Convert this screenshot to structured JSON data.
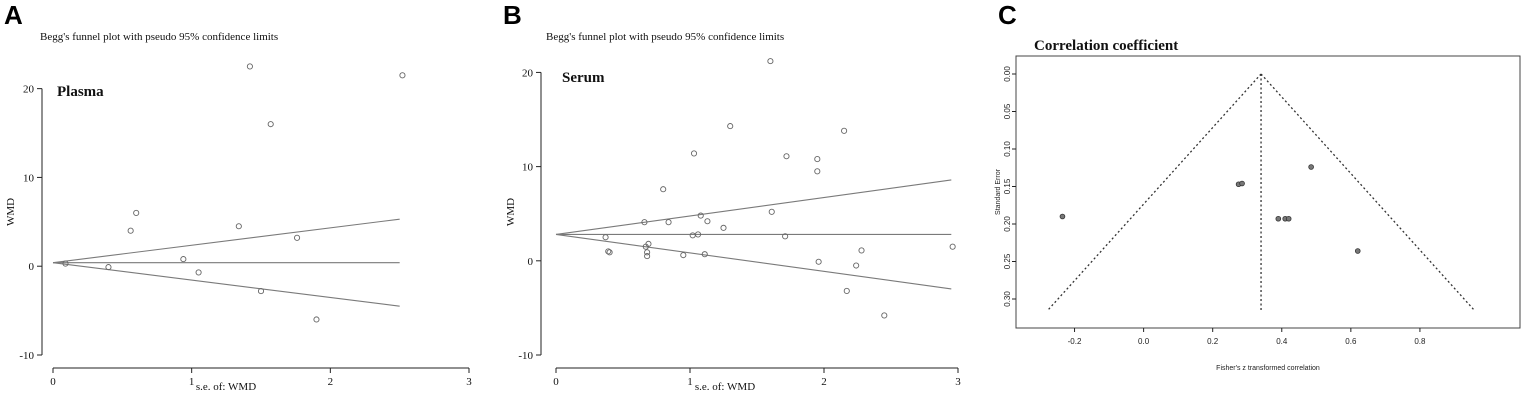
{
  "chart_data": [
    {
      "panel": "A",
      "type": "scatter",
      "title": "Begg's funnel plot with pseudo 95% confidence limits",
      "annotation": "Plasma",
      "xlabel": "s.e. of: WMD",
      "ylabel": "WMD",
      "xlim": [
        0,
        3
      ],
      "ylim": [
        -10,
        23
      ],
      "xticks": [
        0,
        1,
        2,
        3
      ],
      "yticks": [
        -10,
        0,
        10,
        20
      ],
      "pooled": 0.4,
      "limit_xmax": 2.5,
      "points": [
        {
          "x": 0.09,
          "y": 0.3
        },
        {
          "x": 0.4,
          "y": -0.1
        },
        {
          "x": 0.56,
          "y": 4.0
        },
        {
          "x": 0.6,
          "y": 6.0
        },
        {
          "x": 0.94,
          "y": 0.8
        },
        {
          "x": 1.05,
          "y": -0.7
        },
        {
          "x": 1.34,
          "y": 4.5
        },
        {
          "x": 1.42,
          "y": 22.5
        },
        {
          "x": 1.5,
          "y": -2.8
        },
        {
          "x": 1.57,
          "y": 16.0
        },
        {
          "x": 1.76,
          "y": 3.2
        },
        {
          "x": 1.9,
          "y": -6.0
        },
        {
          "x": 2.52,
          "y": 21.5
        }
      ]
    },
    {
      "panel": "B",
      "type": "scatter",
      "title": "Begg's funnel plot with pseudo 95% confidence limits",
      "annotation": "Serum",
      "xlabel": "s.e. of: WMD",
      "ylabel": "WMD",
      "xlim": [
        0,
        3
      ],
      "ylim": [
        -10,
        21
      ],
      "xticks": [
        0,
        1,
        2,
        3
      ],
      "yticks": [
        -10,
        0,
        10,
        20
      ],
      "pooled": 2.8,
      "limit_xmax": 2.95,
      "points": [
        {
          "x": 0.37,
          "y": 2.5
        },
        {
          "x": 0.39,
          "y": 1.0
        },
        {
          "x": 0.4,
          "y": 0.9
        },
        {
          "x": 0.66,
          "y": 4.1
        },
        {
          "x": 0.67,
          "y": 1.5
        },
        {
          "x": 0.68,
          "y": 0.9
        },
        {
          "x": 0.69,
          "y": 1.8
        },
        {
          "x": 0.68,
          "y": 0.5
        },
        {
          "x": 0.8,
          "y": 7.6
        },
        {
          "x": 0.84,
          "y": 4.1
        },
        {
          "x": 0.95,
          "y": 0.6
        },
        {
          "x": 1.02,
          "y": 2.7
        },
        {
          "x": 1.03,
          "y": 11.4
        },
        {
          "x": 1.06,
          "y": 2.8
        },
        {
          "x": 1.08,
          "y": 4.8
        },
        {
          "x": 1.11,
          "y": 0.7
        },
        {
          "x": 1.13,
          "y": 4.2
        },
        {
          "x": 1.25,
          "y": 3.5
        },
        {
          "x": 1.3,
          "y": 14.3
        },
        {
          "x": 1.6,
          "y": 21.2
        },
        {
          "x": 1.61,
          "y": 5.2
        },
        {
          "x": 1.71,
          "y": 2.6
        },
        {
          "x": 1.72,
          "y": 11.1
        },
        {
          "x": 1.95,
          "y": 10.8
        },
        {
          "x": 1.95,
          "y": 9.5
        },
        {
          "x": 1.96,
          "y": -0.1
        },
        {
          "x": 2.15,
          "y": 13.8
        },
        {
          "x": 2.17,
          "y": -3.2
        },
        {
          "x": 2.24,
          "y": -0.5
        },
        {
          "x": 2.28,
          "y": 1.1
        },
        {
          "x": 2.45,
          "y": -5.8
        },
        {
          "x": 2.96,
          "y": 1.5
        }
      ]
    },
    {
      "panel": "C",
      "type": "scatter",
      "title": "Correlation coefficient",
      "xlabel": "Fisher's z transformed correlation",
      "ylabel": "Standard Error",
      "xlim": [
        -0.3,
        1.0
      ],
      "ylim": [
        0.0,
        0.32
      ],
      "y_reversed": true,
      "xticks": [
        -0.2,
        0.0,
        0.2,
        0.4,
        0.6,
        0.8
      ],
      "yticks": [
        0.0,
        0.05,
        0.1,
        0.15,
        0.2,
        0.25,
        0.3
      ],
      "ytick_labels": [
        "0.00",
        "0.05",
        "0.10",
        "0.15",
        "0.20",
        "0.25",
        "0.30"
      ],
      "xtick_labels": [
        "-0.2",
        "0.0",
        "0.2",
        "0.4",
        "0.6",
        "0.8"
      ],
      "pooled": 0.34,
      "funnel_se_max": 0.315,
      "points": [
        {
          "x": -0.235,
          "y": 0.19
        },
        {
          "x": 0.275,
          "y": 0.147
        },
        {
          "x": 0.285,
          "y": 0.146
        },
        {
          "x": 0.39,
          "y": 0.193
        },
        {
          "x": 0.41,
          "y": 0.193
        },
        {
          "x": 0.42,
          "y": 0.193
        },
        {
          "x": 0.485,
          "y": 0.124
        },
        {
          "x": 0.62,
          "y": 0.236
        }
      ]
    }
  ],
  "panels": [
    "A",
    "B",
    "C"
  ]
}
